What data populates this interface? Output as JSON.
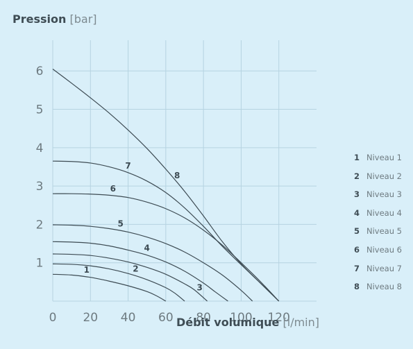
{
  "chart_data": {
    "type": "line",
    "ylabel": {
      "name": "Pression",
      "unit": "[bar]"
    },
    "xlabel": {
      "name": "Débit volumique",
      "unit": "[l/min]"
    },
    "xlim": [
      0,
      140
    ],
    "ylim": [
      0,
      6.8
    ],
    "xticks": [
      0,
      20,
      40,
      60,
      80,
      100,
      120
    ],
    "yticks": [
      1,
      2,
      3,
      4,
      5,
      6
    ],
    "grid": true,
    "legend_position": "right",
    "series": [
      {
        "label": "1",
        "name": "Niveau 1",
        "x": [
          0,
          10,
          20,
          30,
          40,
          50,
          55,
          60
        ],
        "y": [
          0.7,
          0.68,
          0.62,
          0.52,
          0.4,
          0.25,
          0.14,
          0.0
        ]
      },
      {
        "label": "2",
        "name": "Niveau 2",
        "x": [
          0,
          10,
          20,
          30,
          40,
          50,
          60,
          65,
          70
        ],
        "y": [
          0.97,
          0.96,
          0.92,
          0.84,
          0.72,
          0.56,
          0.35,
          0.2,
          0.0
        ]
      },
      {
        "label": "3",
        "name": "Niveau 3",
        "x": [
          0,
          10,
          20,
          30,
          40,
          50,
          60,
          70,
          75,
          82
        ],
        "y": [
          1.23,
          1.22,
          1.19,
          1.12,
          1.02,
          0.88,
          0.7,
          0.45,
          0.3,
          0.0
        ]
      },
      {
        "label": "4",
        "name": "Niveau 4",
        "x": [
          0,
          10,
          20,
          30,
          40,
          50,
          60,
          70,
          80,
          86,
          93
        ],
        "y": [
          1.55,
          1.54,
          1.51,
          1.44,
          1.33,
          1.2,
          1.02,
          0.78,
          0.47,
          0.25,
          0.0
        ]
      },
      {
        "label": "5",
        "name": "Niveau 5",
        "x": [
          0,
          10,
          20,
          30,
          40,
          50,
          60,
          70,
          80,
          90,
          100,
          106
        ],
        "y": [
          1.99,
          1.98,
          1.95,
          1.89,
          1.8,
          1.67,
          1.5,
          1.28,
          1.0,
          0.68,
          0.28,
          0.0
        ]
      },
      {
        "label": "6",
        "name": "Niveau 6",
        "x": [
          0,
          10,
          20,
          30,
          40,
          50,
          60,
          70,
          80,
          90,
          100,
          110,
          120
        ],
        "y": [
          2.8,
          2.8,
          2.79,
          2.76,
          2.7,
          2.58,
          2.41,
          2.17,
          1.85,
          1.46,
          1.0,
          0.52,
          0.0
        ]
      },
      {
        "label": "7",
        "name": "Niveau 7",
        "x": [
          0,
          10,
          20,
          30,
          40,
          50,
          60,
          70,
          80,
          90,
          100,
          110,
          120
        ],
        "y": [
          3.65,
          3.64,
          3.6,
          3.5,
          3.35,
          3.13,
          2.83,
          2.43,
          1.95,
          1.43,
          0.95,
          0.48,
          0.0
        ]
      },
      {
        "label": "8",
        "name": "Niveau 8",
        "x": [
          0,
          10,
          20,
          30,
          40,
          50,
          60,
          70,
          80,
          90,
          100,
          110,
          120
        ],
        "y": [
          6.05,
          5.68,
          5.3,
          4.9,
          4.46,
          3.98,
          3.44,
          2.86,
          2.22,
          1.55,
          0.97,
          0.48,
          0.0
        ]
      }
    ],
    "colors": {
      "background": "#d9eff9",
      "grid": "#b6d3e1",
      "axis": "#b6d3e1",
      "line": "#3d4b53",
      "tick": "#6d7a80"
    }
  }
}
